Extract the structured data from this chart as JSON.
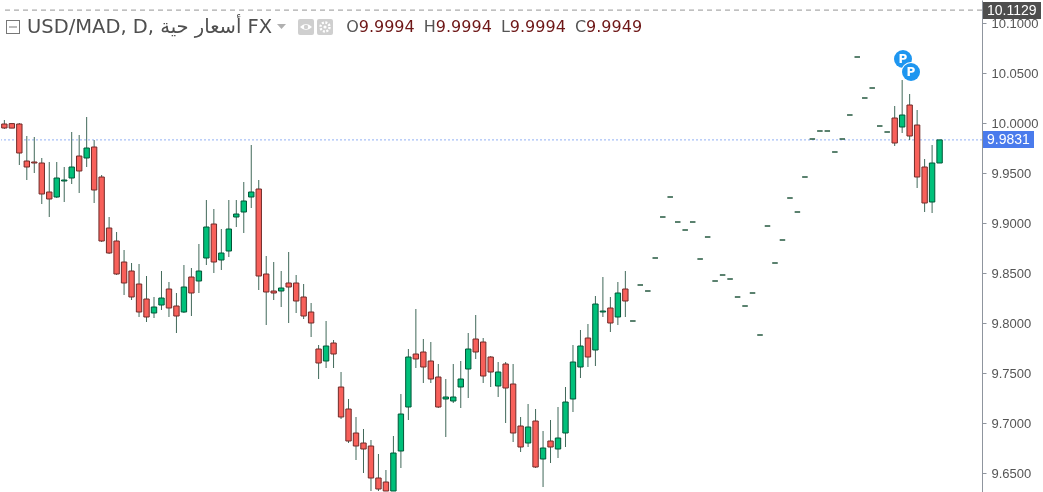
{
  "chart_data": {
    "type": "candlestick",
    "title": "USD/MAD, D, أسعار حية FX",
    "annotations": [
      "O9.9994 H9.9994 L9.9994 C9.9949",
      "P",
      "P"
    ],
    "categories": [
      null,
      null,
      null,
      null,
      null,
      null,
      null,
      null,
      null,
      null,
      null,
      null,
      null,
      null,
      null,
      null,
      null,
      null,
      null,
      null,
      null,
      null,
      null,
      null,
      null,
      null,
      null,
      null,
      null,
      null,
      null,
      null,
      null,
      null,
      null,
      null,
      null,
      null,
      null,
      null,
      null,
      null,
      null,
      null,
      null,
      null,
      null,
      null,
      null,
      null,
      null,
      null,
      null,
      null,
      null,
      null,
      null,
      null,
      null,
      null,
      null,
      null,
      null,
      null,
      null,
      null,
      null,
      null,
      null,
      null,
      null,
      null,
      null,
      null,
      null,
      null,
      null,
      null,
      null,
      null,
      null,
      null,
      null,
      null,
      null,
      null,
      null,
      null,
      null,
      null,
      null,
      null,
      null,
      null,
      null,
      null,
      null,
      null,
      null,
      null,
      null,
      null,
      null,
      null,
      null,
      null,
      null,
      null,
      null,
      null,
      null,
      null,
      null,
      null,
      null,
      null,
      null,
      null,
      null,
      null,
      null,
      null,
      null,
      null,
      null,
      null
    ],
    "ohlc": [
      [
        9.999,
        10.003,
        9.994,
        9.995
      ],
      [
        9.9994,
        9.9994,
        9.9949,
        9.9949
      ],
      [
        9.999,
        10.0,
        9.958,
        9.97
      ],
      [
        9.962,
        9.987,
        9.943,
        9.956
      ],
      [
        9.961,
        9.986,
        9.95,
        9.96
      ],
      [
        9.96,
        9.965,
        9.919,
        9.929
      ],
      [
        9.931,
        9.961,
        9.906,
        9.924
      ],
      [
        9.926,
        9.961,
        9.925,
        9.945
      ],
      [
        9.942,
        9.956,
        9.921,
        9.943
      ],
      [
        9.945,
        9.991,
        9.939,
        9.956
      ],
      [
        9.967,
        9.988,
        9.93,
        9.952
      ],
      [
        9.965,
        10.006,
        9.956,
        9.975
      ],
      [
        9.976,
        9.983,
        9.92,
        9.933
      ],
      [
        9.946,
        9.948,
        9.881,
        9.882
      ],
      [
        9.895,
        9.906,
        9.869,
        9.87
      ],
      [
        9.882,
        9.891,
        9.848,
        9.849
      ],
      [
        9.861,
        9.873,
        9.828,
        9.84
      ],
      [
        9.852,
        9.86,
        9.823,
        9.826
      ],
      [
        9.839,
        9.859,
        9.806,
        9.811
      ],
      [
        9.824,
        9.847,
        9.801,
        9.806
      ],
      [
        9.81,
        9.826,
        9.805,
        9.816
      ],
      [
        9.818,
        9.852,
        9.813,
        9.825
      ],
      [
        9.834,
        9.841,
        9.806,
        9.815
      ],
      [
        9.817,
        9.83,
        9.79,
        9.807
      ],
      [
        9.811,
        9.858,
        9.81,
        9.836
      ],
      [
        9.846,
        9.855,
        9.807,
        9.83
      ],
      [
        9.842,
        9.879,
        9.83,
        9.852
      ],
      [
        9.865,
        9.923,
        9.858,
        9.896
      ],
      [
        9.899,
        9.914,
        9.85,
        9.861
      ],
      [
        9.863,
        9.894,
        9.853,
        9.87
      ],
      [
        9.872,
        9.923,
        9.866,
        9.894
      ],
      [
        9.906,
        9.923,
        9.896,
        9.909
      ],
      [
        9.911,
        9.941,
        9.89,
        9.922
      ],
      [
        9.926,
        9.978,
        9.915,
        9.931
      ],
      [
        9.934,
        9.943,
        9.833,
        9.847
      ],
      [
        9.849,
        9.867,
        9.798,
        9.831
      ],
      [
        9.832,
        9.861,
        9.823,
        9.83
      ],
      [
        9.832,
        9.852,
        9.816,
        9.835
      ],
      [
        9.84,
        9.871,
        9.8,
        9.836
      ],
      [
        9.84,
        9.848,
        9.81,
        9.822
      ],
      [
        9.826,
        9.839,
        9.804,
        9.807
      ],
      [
        9.811,
        9.82,
        9.786,
        9.8
      ],
      [
        9.774,
        9.778,
        9.744,
        9.76
      ],
      [
        9.762,
        9.802,
        9.755,
        9.777
      ],
      [
        9.78,
        9.783,
        9.755,
        9.769
      ],
      [
        9.736,
        9.751,
        9.704,
        9.706
      ],
      [
        9.714,
        9.724,
        9.68,
        9.682
      ],
      [
        9.69,
        9.706,
        9.663,
        9.677
      ],
      [
        9.68,
        9.694,
        9.65,
        9.674
      ],
      [
        9.677,
        9.683,
        9.632,
        9.645
      ],
      [
        9.645,
        9.669,
        9.632,
        9.634
      ],
      [
        9.641,
        9.653,
        9.632,
        9.632
      ],
      [
        9.632,
        9.687,
        9.632,
        9.67
      ],
      [
        9.672,
        9.729,
        9.655,
        9.709
      ],
      [
        9.716,
        9.774,
        9.703,
        9.766
      ],
      [
        9.769,
        9.814,
        9.755,
        9.764
      ],
      [
        9.771,
        9.784,
        9.74,
        9.756
      ],
      [
        9.762,
        9.781,
        9.74,
        9.744
      ],
      [
        9.746,
        9.759,
        9.715,
        9.716
      ],
      [
        9.724,
        9.744,
        9.686,
        9.726
      ],
      [
        9.722,
        9.759,
        9.72,
        9.726
      ],
      [
        9.736,
        9.762,
        9.715,
        9.744
      ],
      [
        9.754,
        9.79,
        9.725,
        9.774
      ],
      [
        9.784,
        9.808,
        9.764,
        9.771
      ],
      [
        9.781,
        9.785,
        9.74,
        9.747
      ],
      [
        9.766,
        9.767,
        9.736,
        9.751
      ],
      [
        9.737,
        9.761,
        9.726,
        9.751
      ],
      [
        9.759,
        9.761,
        9.7,
        9.735
      ],
      [
        9.739,
        9.759,
        9.681,
        9.69
      ],
      [
        9.697,
        9.706,
        9.671,
        9.676
      ],
      [
        9.68,
        9.719,
        9.676,
        9.696
      ],
      [
        9.702,
        9.714,
        9.655,
        9.656
      ],
      [
        9.664,
        9.692,
        9.636,
        9.675
      ],
      [
        9.682,
        9.703,
        9.66,
        9.676
      ],
      [
        9.674,
        9.716,
        9.665,
        9.685
      ],
      [
        9.69,
        9.736,
        9.676,
        9.721
      ],
      [
        9.724,
        9.778,
        9.711,
        9.761
      ],
      [
        9.756,
        9.793,
        9.745,
        9.777
      ],
      [
        9.785,
        9.799,
        9.756,
        9.766
      ],
      [
        9.773,
        9.827,
        9.757,
        9.819
      ],
      [
        9.811,
        9.846,
        9.806,
        9.812
      ],
      [
        9.815,
        9.826,
        9.791,
        9.8
      ],
      [
        9.806,
        9.841,
        9.798,
        9.83
      ],
      [
        9.834,
        9.852,
        9.806,
        9.822
      ],
      [
        9.802,
        9.802,
        9.802,
        9.802
      ],
      [
        9.838,
        9.838,
        9.838,
        9.838
      ],
      [
        9.832,
        9.832,
        9.832,
        9.832
      ],
      [
        9.865,
        9.865,
        9.865,
        9.865
      ],
      [
        9.906,
        9.906,
        9.906,
        9.906
      ],
      [
        9.926,
        9.926,
        9.926,
        9.926
      ],
      [
        9.901,
        9.901,
        9.901,
        9.901
      ],
      [
        9.893,
        9.893,
        9.893,
        9.893
      ],
      [
        9.901,
        9.901,
        9.901,
        9.901
      ],
      [
        9.864,
        9.864,
        9.864,
        9.864
      ],
      [
        9.886,
        9.886,
        9.886,
        9.886
      ],
      [
        9.842,
        9.842,
        9.842,
        9.842
      ],
      [
        9.848,
        9.848,
        9.848,
        9.848
      ],
      [
        9.844,
        9.844,
        9.844,
        9.844
      ],
      [
        9.826,
        9.826,
        9.826,
        9.826
      ],
      [
        9.817,
        9.817,
        9.817,
        9.817
      ],
      [
        9.83,
        9.83,
        9.83,
        9.83
      ],
      [
        9.788,
        9.788,
        9.788,
        9.788
      ],
      [
        9.897,
        9.897,
        9.897,
        9.897
      ],
      [
        9.86,
        9.86,
        9.86,
        9.86
      ],
      [
        9.883,
        9.883,
        9.883,
        9.883
      ],
      [
        9.925,
        9.925,
        9.925,
        9.925
      ],
      [
        9.911,
        9.911,
        9.911,
        9.911
      ],
      [
        9.946,
        9.946,
        9.946,
        9.946
      ],
      [
        9.984,
        9.984,
        9.984,
        9.984
      ],
      [
        9.992,
        9.992,
        9.992,
        9.992
      ],
      [
        9.992,
        9.992,
        9.992,
        9.992
      ],
      [
        9.971,
        9.971,
        9.971,
        9.971
      ],
      [
        9.984,
        9.984,
        9.984,
        9.984
      ],
      [
        10.008,
        10.008,
        10.008,
        10.008
      ],
      [
        10.066,
        10.066,
        10.066,
        10.066
      ],
      [
        10.025,
        10.025,
        10.025,
        10.025
      ],
      [
        10.035,
        10.035,
        10.035,
        10.035
      ],
      [
        9.997,
        9.997,
        9.997,
        9.997
      ],
      [
        9.991,
        9.991,
        9.991,
        9.991
      ],
      [
        10.005,
        10.017,
        9.977,
        9.98
      ],
      [
        9.996,
        10.043,
        9.99,
        10.008
      ],
      [
        10.018,
        10.029,
        9.983,
        9.987
      ],
      [
        9.998,
        10.013,
        9.935,
        9.946
      ],
      [
        9.956,
        9.964,
        9.911,
        9.92
      ],
      [
        9.921,
        9.978,
        9.91,
        9.96
      ],
      [
        9.96,
        9.9831,
        9.96,
        9.9831
      ]
    ],
    "colors": [
      "#f8605a",
      "#f8605a",
      "#f8605a",
      "#f8605a",
      "#f8605a",
      "#f8605a",
      "#f8605a",
      "#00c07a",
      "#00c07a",
      "#00c07a",
      "#f8605a",
      "#00c07a",
      "#f8605a",
      "#f8605a",
      "#f8605a",
      "#f8605a",
      "#f8605a",
      "#f8605a",
      "#f8605a",
      "#f8605a",
      "#00c07a",
      "#00c07a",
      "#f8605a",
      "#f8605a",
      "#00c07a",
      "#f8605a",
      "#00c07a",
      "#00c07a",
      "#f8605a",
      "#00c07a",
      "#00c07a",
      "#00c07a",
      "#00c07a",
      "#00c07a",
      "#f8605a",
      "#f8605a",
      "#f8605a",
      "#00c07a",
      "#f8605a",
      "#f8605a",
      "#f8605a",
      "#f8605a",
      "#f8605a",
      "#00c07a",
      "#f8605a",
      "#f8605a",
      "#f8605a",
      "#f8605a",
      "#f8605a",
      "#f8605a",
      "#f8605a",
      "#f8605a",
      "#00c07a",
      "#00c07a",
      "#00c07a",
      "#f8605a",
      "#f8605a",
      "#f8605a",
      "#f8605a",
      "#00c07a",
      "#00c07a",
      "#00c07a",
      "#00c07a",
      "#f8605a",
      "#f8605a",
      "#f8605a",
      "#00c07a",
      "#f8605a",
      "#f8605a",
      "#f8605a",
      "#00c07a",
      "#f8605a",
      "#00c07a",
      "#f8605a",
      "#00c07a",
      "#00c07a",
      "#00c07a",
      "#00c07a",
      "#f8605a",
      "#00c07a",
      "#00c07a",
      "#f8605a",
      "#00c07a",
      "#f8605a",
      "#24583f",
      "#24583f",
      "#24583f",
      "#24583f",
      "#24583f",
      "#24583f",
      "#24583f",
      "#24583f",
      "#24583f",
      "#24583f",
      "#24583f",
      "#24583f",
      "#24583f",
      "#24583f",
      "#24583f",
      "#24583f",
      "#24583f",
      "#24583f",
      "#24583f",
      "#24583f",
      "#24583f",
      "#24583f",
      "#24583f",
      "#24583f",
      "#24583f",
      "#24583f",
      "#24583f",
      "#24583f",
      "#24583f",
      "#24583f",
      "#24583f",
      "#24583f",
      "#24583f",
      "#24583f",
      "#24583f",
      "#f8605a",
      "#00c07a",
      "#f8605a",
      "#f8605a",
      "#f8605a",
      "#00c07a",
      "#00c07a"
    ],
    "ylim": [
      9.631,
      10.123
    ],
    "yticks": [
      {
        "value": 9.65,
        "label": "9.6500"
      },
      {
        "value": 9.7,
        "label": "9.7000"
      },
      {
        "value": 9.75,
        "label": "9.7500"
      },
      {
        "value": 9.8,
        "label": "9.8000"
      },
      {
        "value": 9.85,
        "label": "9.8500"
      },
      {
        "value": 9.9,
        "label": "9.9000"
      },
      {
        "value": 9.95,
        "label": "9.9500"
      },
      {
        "value": 10.0,
        "label": "10.0000"
      },
      {
        "value": 10.05,
        "label": "10.0500"
      },
      {
        "value": 10.1,
        "label": "10.1000"
      }
    ],
    "ref_lines": [
      {
        "axis": "y",
        "value": 10.1129,
        "label": "10.1129",
        "color": "#4e4e4e",
        "line_style": "dashed"
      },
      {
        "axis": "y",
        "value": 9.9831,
        "label": "9.9831",
        "color": "#4a7bec",
        "line_style": "dotted"
      }
    ],
    "tick_labels": "y"
  }
}
